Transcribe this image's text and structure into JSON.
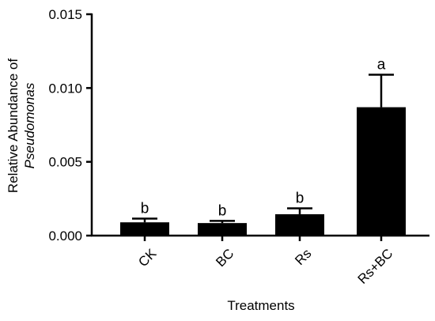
{
  "chart_data": {
    "type": "bar",
    "categories": [
      "CK",
      "BC",
      "Rs",
      "Rs+BC"
    ],
    "values": [
      0.0009,
      0.00085,
      0.00145,
      0.0087
    ],
    "errors": [
      0.00025,
      0.00015,
      0.0004,
      0.0022
    ],
    "significance": [
      "b",
      "b",
      "b",
      "a"
    ],
    "ylim": [
      0,
      0.015
    ],
    "yticks": [
      "0.000",
      "0.005",
      "0.010",
      "0.015"
    ],
    "ytick_values": [
      0,
      0.005,
      0.01,
      0.015
    ],
    "xlabel": "Treatments",
    "ylabel_line1": "Relative Abundance of",
    "ylabel_line2": "Pseudomonas",
    "bar_color": "#000000"
  }
}
